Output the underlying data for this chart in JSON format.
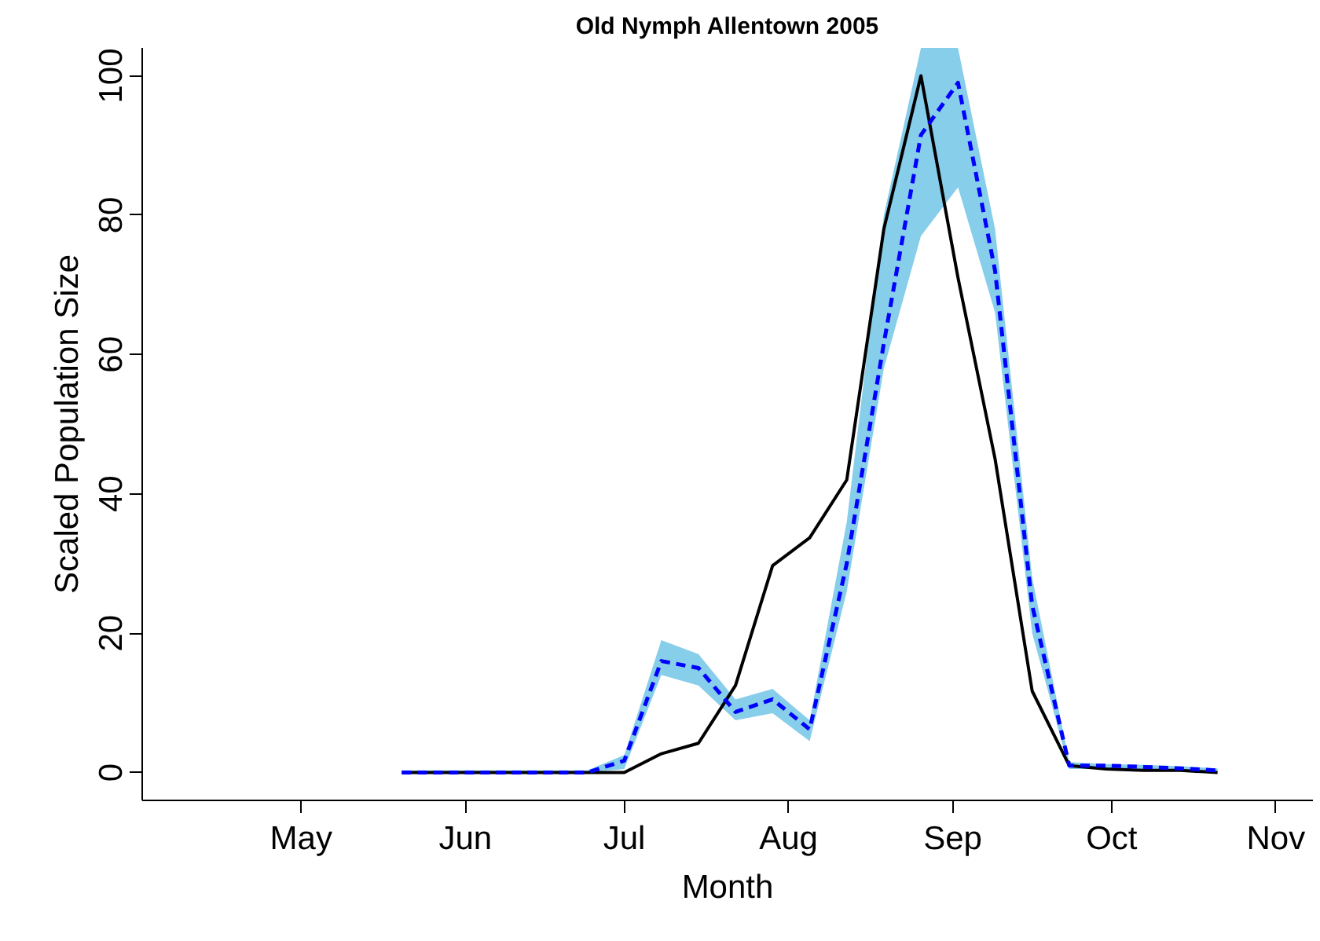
{
  "chart_data": {
    "type": "line",
    "title": "Old Nymph Allentown 2005",
    "xlabel": "Month",
    "ylabel": "Scaled Population Size",
    "x": [
      "2005-05-20",
      "2005-05-27",
      "2005-06-03",
      "2005-06-10",
      "2005-06-17",
      "2005-06-24",
      "2005-07-01",
      "2005-07-08",
      "2005-07-15",
      "2005-07-22",
      "2005-07-29",
      "2005-08-05",
      "2005-08-12",
      "2005-08-19",
      "2005-08-26",
      "2005-09-02",
      "2005-09-09",
      "2005-09-16",
      "2005-09-23",
      "2005-09-30",
      "2005-10-07",
      "2005-10-14",
      "2005-10-21"
    ],
    "series": [
      {
        "color": "#000000",
        "line_style": "solid",
        "values": [
          0,
          0,
          0,
          0,
          0,
          0,
          0,
          2.7,
          4.2,
          12.5,
          29.7,
          33.7,
          42,
          78,
          100,
          71,
          45,
          11.7,
          1,
          0.5,
          0.3,
          0.3,
          0
        ]
      },
      {
        "color": "#0000ff",
        "line_style": "dashed",
        "values": [
          0,
          0,
          0,
          0,
          0,
          0,
          1.7,
          16,
          15,
          8.7,
          10.5,
          6.2,
          30,
          61.6,
          91.5,
          99,
          72,
          24,
          1,
          1,
          0.8,
          0.6,
          0.3
        ],
        "lower": [
          0,
          0,
          0,
          0,
          0,
          0,
          0.5,
          14,
          12.5,
          7.5,
          8.5,
          4.5,
          26,
          58,
          77,
          84,
          66,
          20,
          0.5,
          0.5,
          0.5,
          0.4,
          0.2
        ],
        "upper": [
          0.3,
          0.3,
          0.3,
          0.3,
          0.3,
          0.3,
          2.5,
          19,
          17,
          10.5,
          12,
          7.5,
          36,
          80,
          104,
          104,
          78,
          28,
          1.5,
          1.2,
          1.1,
          0.9,
          0.6
        ]
      }
    ],
    "xlim": [
      "2005-04-01",
      "2005-11-08"
    ],
    "ylim": [
      -4,
      104
    ],
    "xticks": [
      {
        "value": "2005-05-01",
        "label": "May"
      },
      {
        "value": "2005-06-01",
        "label": "Jun"
      },
      {
        "value": "2005-07-01",
        "label": "Jul"
      },
      {
        "value": "2005-08-01",
        "label": "Aug"
      },
      {
        "value": "2005-09-01",
        "label": "Sep"
      },
      {
        "value": "2005-10-01",
        "label": "Oct"
      },
      {
        "value": "2005-11-01",
        "label": "Nov"
      }
    ],
    "yticks": [
      0,
      20,
      40,
      60,
      80,
      100
    ]
  }
}
